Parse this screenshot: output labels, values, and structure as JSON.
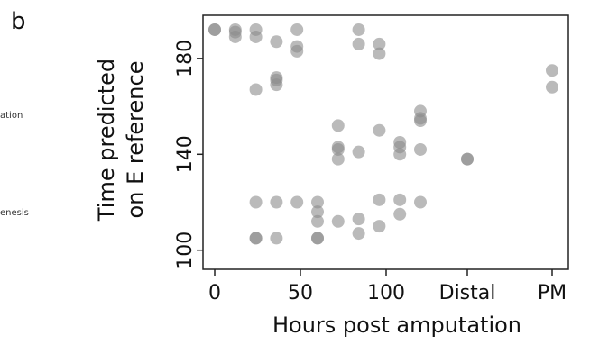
{
  "panel_label": "b",
  "left_fragments": [
    "ation",
    "enesis"
  ],
  "chart_data": {
    "type": "scatter",
    "title": "",
    "xlabel": "Hours post amputation",
    "ylabel_lines": [
      "Time predicted",
      "on E reference"
    ],
    "x_tick_labels": [
      "0",
      "50",
      "100",
      "Distal",
      "PM"
    ],
    "y_ticks": [
      100,
      140,
      180
    ],
    "ylim": [
      92,
      198
    ],
    "x_categories_note": "numeric hours 0-120; Distal and PM are categorical groups",
    "point_color": "#8c8c8c",
    "point_opacity": 0.6,
    "grid": false,
    "points": [
      {
        "x": 0,
        "y": 192
      },
      {
        "x": 0,
        "y": 192
      },
      {
        "x": 12,
        "y": 192
      },
      {
        "x": 12,
        "y": 191
      },
      {
        "x": 12,
        "y": 189
      },
      {
        "x": 24,
        "y": 192
      },
      {
        "x": 24,
        "y": 189
      },
      {
        "x": 24,
        "y": 167
      },
      {
        "x": 24,
        "y": 120
      },
      {
        "x": 24,
        "y": 105
      },
      {
        "x": 24,
        "y": 105
      },
      {
        "x": 36,
        "y": 187
      },
      {
        "x": 36,
        "y": 172
      },
      {
        "x": 36,
        "y": 171
      },
      {
        "x": 36,
        "y": 169
      },
      {
        "x": 36,
        "y": 120
      },
      {
        "x": 36,
        "y": 105
      },
      {
        "x": 48,
        "y": 192
      },
      {
        "x": 48,
        "y": 185
      },
      {
        "x": 48,
        "y": 183
      },
      {
        "x": 48,
        "y": 120
      },
      {
        "x": 60,
        "y": 120
      },
      {
        "x": 60,
        "y": 116
      },
      {
        "x": 60,
        "y": 112
      },
      {
        "x": 60,
        "y": 105
      },
      {
        "x": 60,
        "y": 105
      },
      {
        "x": 72,
        "y": 152
      },
      {
        "x": 72,
        "y": 143
      },
      {
        "x": 72,
        "y": 142
      },
      {
        "x": 72,
        "y": 138
      },
      {
        "x": 72,
        "y": 112
      },
      {
        "x": 84,
        "y": 192
      },
      {
        "x": 84,
        "y": 186
      },
      {
        "x": 84,
        "y": 141
      },
      {
        "x": 84,
        "y": 113
      },
      {
        "x": 84,
        "y": 107
      },
      {
        "x": 96,
        "y": 186
      },
      {
        "x": 96,
        "y": 182
      },
      {
        "x": 96,
        "y": 150
      },
      {
        "x": 96,
        "y": 121
      },
      {
        "x": 96,
        "y": 110
      },
      {
        "x": 108,
        "y": 145
      },
      {
        "x": 108,
        "y": 143
      },
      {
        "x": 108,
        "y": 140
      },
      {
        "x": 108,
        "y": 121
      },
      {
        "x": 108,
        "y": 115
      },
      {
        "x": 120,
        "y": 158
      },
      {
        "x": 120,
        "y": 155
      },
      {
        "x": 120,
        "y": 154
      },
      {
        "x": 120,
        "y": 142
      },
      {
        "x": 120,
        "y": 120
      },
      {
        "x": "Distal",
        "y": 138
      },
      {
        "x": "Distal",
        "y": 138
      },
      {
        "x": "PM",
        "y": 175
      },
      {
        "x": "PM",
        "y": 168
      }
    ]
  }
}
